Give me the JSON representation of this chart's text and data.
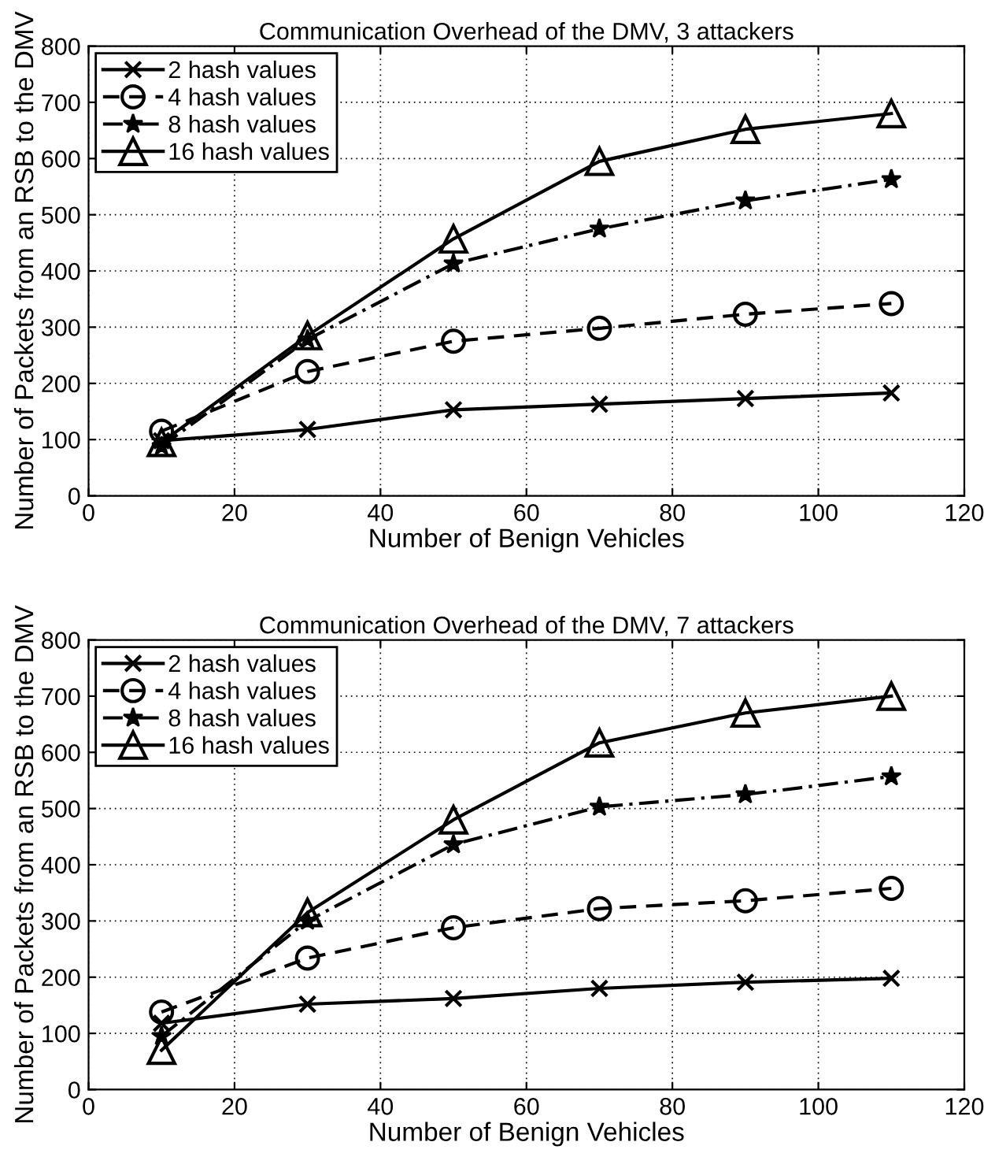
{
  "chart_data": [
    {
      "type": "line",
      "title": "Communication Overhead of the DMV, 3 attackers",
      "xlabel": "Number of Benign Vehicles",
      "ylabel": "Number of Packets from an RSB to the DMV",
      "x": [
        10,
        30,
        50,
        70,
        90,
        110
      ],
      "xlim": [
        0,
        120
      ],
      "xticks": [
        0,
        20,
        40,
        60,
        80,
        100,
        120
      ],
      "ylim": [
        0,
        800
      ],
      "yticks": [
        0,
        100,
        200,
        300,
        400,
        500,
        600,
        700,
        800
      ],
      "grid": true,
      "legend": "top left",
      "series": [
        {
          "name": "2 hash values",
          "color": "#000000",
          "marker": "cross",
          "line_style": "solid",
          "values": [
            98,
            118,
            153,
            163,
            173,
            183
          ]
        },
        {
          "name": "4 hash values",
          "color": "#000000",
          "marker": "circle",
          "line_style": "dashed",
          "values": [
            115,
            221,
            275,
            298,
            323,
            342
          ]
        },
        {
          "name": "8 hash values",
          "color": "#000000",
          "marker": "star",
          "line_style": "dashdot",
          "values": [
            88,
            278,
            413,
            475,
            525,
            563
          ]
        },
        {
          "name": "16 hash values",
          "color": "#000000",
          "marker": "triangle",
          "line_style": "solid",
          "values": [
            95,
            285,
            457,
            595,
            652,
            680
          ]
        }
      ]
    },
    {
      "type": "line",
      "title": "Communication Overhead of the DMV, 7 attackers",
      "xlabel": "Number of Benign Vehicles",
      "ylabel": "Number of Packets from an RSB to the DMV",
      "x": [
        10,
        30,
        50,
        70,
        90,
        110
      ],
      "xlim": [
        0,
        120
      ],
      "xticks": [
        0,
        20,
        40,
        60,
        80,
        100,
        120
      ],
      "ylim": [
        0,
        800
      ],
      "yticks": [
        0,
        100,
        200,
        300,
        400,
        500,
        600,
        700,
        800
      ],
      "grid": true,
      "legend": "top left",
      "series": [
        {
          "name": "2 hash values",
          "color": "#000000",
          "marker": "cross",
          "line_style": "solid",
          "values": [
            118,
            152,
            162,
            180,
            191,
            198
          ]
        },
        {
          "name": "4 hash values",
          "color": "#000000",
          "marker": "circle",
          "line_style": "dashed",
          "values": [
            138,
            234,
            288,
            322,
            336,
            358
          ]
        },
        {
          "name": "8 hash values",
          "color": "#000000",
          "marker": "star",
          "line_style": "dashdot",
          "values": [
            95,
            300,
            436,
            503,
            525,
            557
          ]
        },
        {
          "name": "16 hash values",
          "color": "#000000",
          "marker": "triangle",
          "line_style": "solid",
          "values": [
            70,
            315,
            480,
            617,
            670,
            700
          ]
        }
      ]
    }
  ]
}
